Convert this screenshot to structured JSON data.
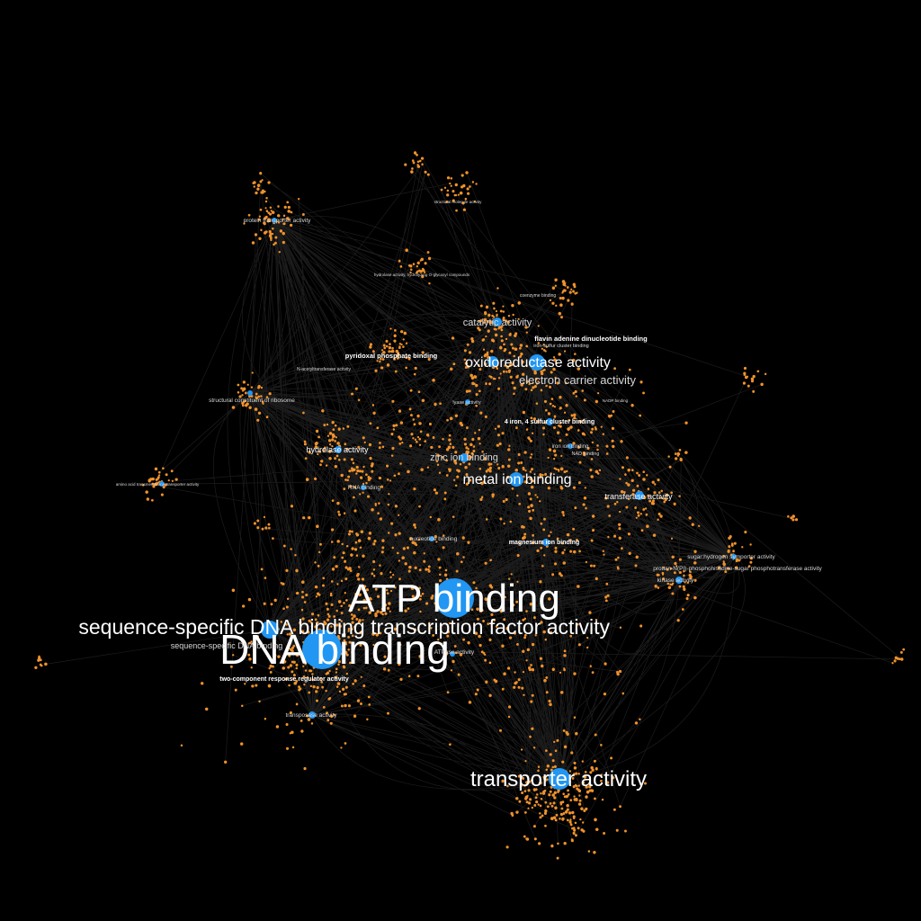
{
  "colors": {
    "background": "#000000",
    "hub_node": "#2196f3",
    "gene_node": "#f0922b",
    "edge": "#9a9a9a",
    "label": "#ffffff"
  },
  "labels": {
    "l0": "ATP binding",
    "l1": "DNA binding",
    "l2": "sequence-specific DNA binding transcription factor activity",
    "l3": "transporter activity",
    "l4": "oxidoreductase activity",
    "l5": "metal ion binding",
    "l6": "electron carrier activity",
    "l7": "catalytic activity",
    "l8": "zinc ion binding",
    "l9": "transferase activity",
    "l10": "hydrolase activity",
    "l11": "flavin adenine dinucleotide binding",
    "l12": "pyridoxal phosphate binding",
    "l13": "4 iron, 4 sulfur cluster binding",
    "l14": "magnesium ion binding",
    "l15": "two-component response regulator activity",
    "l16": "sequence-specific DNA binding",
    "l17": "sugar:hydrogen symporter activity",
    "l18": "protein-N(PI)-phosphohistidine-sugar phosphotransferase activity",
    "l19": "kinase activity",
    "l20": "protein transporter activity",
    "l21": "structural constituent of ribosome",
    "l22": "RNA binding",
    "l23": "nucleotide binding",
    "l24": "transposase activity",
    "l25": "ATPase activity",
    "l26": "amino acid transmembrane transporter activity",
    "l27": "iron ion binding",
    "l28": "NAD binding",
    "l29": "lyase activity",
    "l30": "N-acetyltransferase activity",
    "l31": "coenzyme binding",
    "l32": "iron-sulfur cluster binding",
    "l33": "hydrolase activity, hydrolyzing O-glycosyl compounds",
    "l34": "structural molecule activity",
    "l35": "NADP binding"
  }
}
